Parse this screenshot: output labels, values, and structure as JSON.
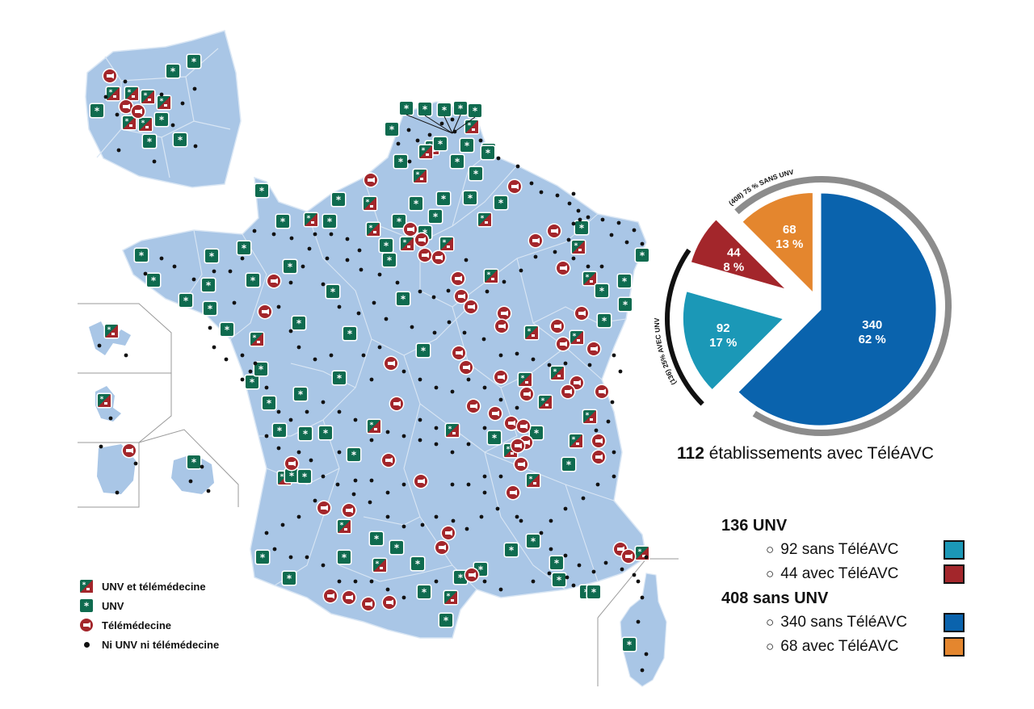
{
  "legend": {
    "items": [
      {
        "label": "UNV et télémédecine",
        "symbol": "unv-tele"
      },
      {
        "label": "UNV",
        "symbol": "unv"
      },
      {
        "label": "Télémédecine",
        "symbol": "tele"
      },
      {
        "label": "Ni UNV ni télémédecine",
        "symbol": "dot"
      }
    ]
  },
  "colors": {
    "land": "#a9c6e6",
    "border": "#d9e6f4",
    "unv_green": "#0f6b4f",
    "tele_red": "#a3262b",
    "dot": "#111111",
    "pie_teal": "#1b98b7",
    "pie_red": "#a3262b",
    "pie_blue": "#0a63ad",
    "pie_orange": "#e4862e"
  },
  "chart_data": {
    "type": "pie",
    "title": "",
    "arc_labels": [
      "(136) 25% AVEC UNV",
      "(408) 75 % SANS UNV"
    ],
    "slices": [
      {
        "value": 340,
        "percent": "62 %",
        "color": "#0a63ad"
      },
      {
        "value": 92,
        "percent": "17 %",
        "color": "#1b98b7"
      },
      {
        "value": 44,
        "percent": "8 %",
        "color": "#a3262b"
      },
      {
        "value": 68,
        "percent": "13 %",
        "color": "#e4862e"
      }
    ]
  },
  "summary": {
    "count": "112",
    "text": "établissements avec TéléAVC"
  },
  "breakdown": {
    "groups": [
      {
        "title": "136 UNV",
        "items": [
          {
            "label": "92  sans TéléAVC",
            "color": "#1b98b7"
          },
          {
            "label": "44  avec TéléAVC",
            "color": "#a3262b"
          }
        ]
      },
      {
        "title": "408 sans UNV",
        "items": [
          {
            "label": "340 sans TéléAVC",
            "color": "#0a63ad"
          },
          {
            "label": "68   avec TéléAVC",
            "color": "#e4862e"
          }
        ]
      }
    ]
  }
}
